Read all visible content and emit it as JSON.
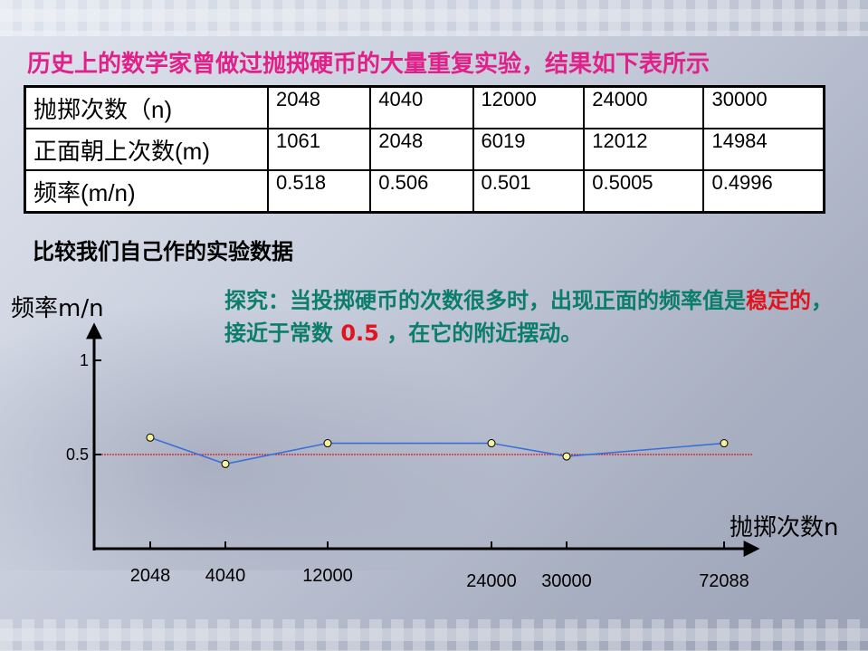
{
  "title": "历史上的数学家曾做过抛掷硬币的大量重复实验，结果如下表所示",
  "table": {
    "rows": [
      {
        "header": "抛掷次数（n)",
        "cells": [
          "2048",
          "4040",
          "12000",
          "24000",
          "30000"
        ]
      },
      {
        "header": "正面朝上次数(m)",
        "cells": [
          "1061",
          "2048",
          "6019",
          "12012",
          "14984"
        ]
      },
      {
        "header": "频率(m/n)",
        "cells": [
          "0.518",
          "0.506",
          "0.501",
          "0.5005",
          "0.4996"
        ]
      }
    ]
  },
  "subtitle": "比较我们自己作的实验数据",
  "note": {
    "part1": "探究：当投掷硬币的次数很多时，出现正面的频率值是",
    "highlight1": "稳定的",
    "part2": "，接近于常数 ",
    "highlight2": "0.5",
    "part3": " ，在它的附近摆动。"
  },
  "chart_data": {
    "type": "line",
    "ylabel": "频率m/n",
    "xlabel": "抛掷次数n",
    "y_ticks": [
      "1",
      "0.5"
    ],
    "reference_line": 0.5,
    "categories": [
      "2048",
      "4040",
      "12000",
      "24000",
      "30000",
      "72088"
    ],
    "values": [
      0.59,
      0.45,
      0.56,
      0.56,
      0.49,
      0.56
    ],
    "colors": {
      "line": "#3a6fd8",
      "reference": "#e0141e",
      "marker_fill": "#f4f29a"
    }
  }
}
